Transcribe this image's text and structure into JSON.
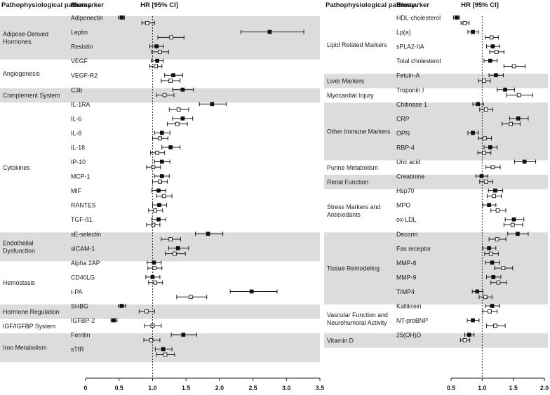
{
  "chart_data": {
    "type": "forest",
    "headers": {
      "pathway": "Pathophysiological pathway",
      "biomarker": "Biomarker",
      "hr": "HR [95% CI]"
    },
    "panels": [
      {
        "name": "left",
        "xlim": [
          0,
          3.5
        ],
        "ticks": [
          0,
          0.5,
          1.0,
          1.5,
          2.0,
          2.5,
          3.0,
          3.5
        ],
        "tick_labels": [
          "0",
          "0.5",
          "1.0",
          "1.5",
          "2.0",
          "2.5",
          "3.0",
          "3.5"
        ],
        "ref_line": 1.0,
        "groups": [
          {
            "pathway": "Adipose-Derived Hormones",
            "shaded": true,
            "biomarkers": [
              {
                "name": "Adiponectin",
                "filled": [
                  0.54,
                  0.49,
                  0.58
                ],
                "open": [
                  0.92,
                  0.84,
                  1.03
                ]
              },
              {
                "name": "Leptin",
                "filled": [
                  2.75,
                  2.32,
                  3.26
                ],
                "open": [
                  1.28,
                  1.08,
                  1.47
                ]
              },
              {
                "name": "Resistin",
                "filled": [
                  1.06,
                  0.96,
                  1.16
                ],
                "open": [
                  1.11,
                  0.99,
                  1.24
                ]
              }
            ]
          },
          {
            "pathway": "Angiogenesis",
            "shaded": false,
            "biomarkers": [
              {
                "name": "VEGF",
                "filled": [
                  1.07,
                  0.98,
                  1.16
                ],
                "open": [
                  1.05,
                  0.96,
                  1.14
                ]
              },
              {
                "name": "VEGF-R2",
                "filled": [
                  1.31,
                  1.18,
                  1.45
                ],
                "open": [
                  1.27,
                  1.13,
                  1.41
                ]
              }
            ]
          },
          {
            "pathway": "Complement System",
            "shaded": true,
            "biomarkers": [
              {
                "name": "C3b",
                "filled": [
                  1.45,
                  1.3,
                  1.61
                ],
                "open": [
                  1.18,
                  1.06,
                  1.32
                ]
              }
            ]
          },
          {
            "pathway": "Cytokines",
            "shaded": false,
            "biomarkers": [
              {
                "name": "IL-1RA",
                "filled": [
                  1.89,
                  1.7,
                  2.1
                ],
                "open": [
                  1.39,
                  1.25,
                  1.54
                ]
              },
              {
                "name": "IL-6",
                "filled": [
                  1.45,
                  1.3,
                  1.6
                ],
                "open": [
                  1.37,
                  1.22,
                  1.52
                ]
              },
              {
                "name": "IL-8",
                "filled": [
                  1.14,
                  1.03,
                  1.26
                ],
                "open": [
                  1.11,
                  1.0,
                  1.23
                ]
              },
              {
                "name": "IL-18",
                "filled": [
                  1.27,
                  1.14,
                  1.41
                ],
                "open": [
                  1.07,
                  0.97,
                  1.18
                ]
              },
              {
                "name": "IP-10",
                "filled": [
                  1.14,
                  1.03,
                  1.26
                ],
                "open": [
                  1.01,
                  0.91,
                  1.12
                ]
              },
              {
                "name": "MCP-1",
                "filled": [
                  1.14,
                  1.03,
                  1.25
                ],
                "open": [
                  1.11,
                  1.0,
                  1.22
                ]
              },
              {
                "name": "MIF",
                "filled": [
                  1.09,
                  0.99,
                  1.2
                ],
                "open": [
                  1.17,
                  1.06,
                  1.29
                ]
              },
              {
                "name": "RANTES",
                "filled": [
                  1.1,
                  1.0,
                  1.21
                ],
                "open": [
                  1.04,
                  0.94,
                  1.15
                ]
              },
              {
                "name": "TGF-ß1",
                "filled": [
                  1.09,
                  0.99,
                  1.2
                ],
                "open": [
                  1.01,
                  0.91,
                  1.11
                ]
              }
            ]
          },
          {
            "pathway": "Endothelial Dysfunction",
            "shaded": true,
            "biomarkers": [
              {
                "name": "sE-selectin",
                "filled": [
                  1.83,
                  1.64,
                  2.05
                ],
                "open": [
                  1.27,
                  1.13,
                  1.42
                ]
              },
              {
                "name": "sICAM-1",
                "filled": [
                  1.38,
                  1.24,
                  1.54
                ],
                "open": [
                  1.33,
                  1.19,
                  1.49
                ]
              }
            ]
          },
          {
            "pathway": "Hemostasis",
            "shaded": false,
            "biomarkers": [
              {
                "name": "Alpha 2AP",
                "filled": [
                  1.02,
                  0.92,
                  1.13
                ],
                "open": [
                  1.03,
                  0.93,
                  1.14
                ]
              },
              {
                "name": "CD40LG",
                "filled": [
                  1.0,
                  0.9,
                  1.11
                ],
                "open": [
                  1.04,
                  0.94,
                  1.15
                ]
              },
              {
                "name": "t-PA",
                "filled": [
                  2.48,
                  2.16,
                  2.86
                ],
                "open": [
                  1.57,
                  1.36,
                  1.81
                ]
              }
            ]
          },
          {
            "pathway": "Hormone Regulation",
            "shaded": true,
            "biomarkers": [
              {
                "name": "SHBG",
                "filled": [
                  0.54,
                  0.49,
                  0.6
                ],
                "open": [
                  0.91,
                  0.8,
                  1.03
                ]
              }
            ]
          },
          {
            "pathway": "IGF/IGFBP System",
            "shaded": false,
            "biomarkers": [
              {
                "name": "IGFBP-2",
                "filled": [
                  0.42,
                  0.38,
                  0.47
                ],
                "open": [
                  1.0,
                  0.88,
                  1.13
                ]
              }
            ]
          },
          {
            "pathway": "Iron Metabolism",
            "shaded": true,
            "biomarkers": [
              {
                "name": "Ferritin",
                "filled": [
                  1.46,
                  1.28,
                  1.66
                ],
                "open": [
                  0.98,
                  0.87,
                  1.11
                ]
              },
              {
                "name": "sTfR",
                "filled": [
                  1.16,
                  1.04,
                  1.29
                ],
                "open": [
                  1.19,
                  1.06,
                  1.33
                ]
              }
            ]
          }
        ]
      },
      {
        "name": "right",
        "xlim": [
          0.5,
          2.0
        ],
        "ticks": [
          0.5,
          1.0,
          1.5,
          2.0
        ],
        "tick_labels": [
          "0.5",
          "1.0",
          "1.5",
          "2.0"
        ],
        "ref_line": 1.0,
        "groups": [
          {
            "pathway": "Lipid Related Markers",
            "shaded": false,
            "biomarkers": [
              {
                "name": "HDL-cholesterol",
                "filled": [
                  0.59,
                  0.54,
                  0.64
                ],
                "open": [
                  0.72,
                  0.66,
                  0.79
                ]
              },
              {
                "name": "Lp(a)",
                "filled": [
                  0.85,
                  0.77,
                  0.94
                ],
                "open": [
                  1.15,
                  1.05,
                  1.26
                ]
              },
              {
                "name": "sPLA2-IIA",
                "filled": [
                  1.17,
                  1.07,
                  1.28
                ],
                "open": [
                  1.23,
                  1.12,
                  1.35
                ]
              },
              {
                "name": "Total cholesterol",
                "filled": [
                  1.13,
                  1.03,
                  1.24
                ],
                "open": [
                  1.51,
                  1.35,
                  1.69
                ]
              }
            ]
          },
          {
            "pathway": "Liver Markers",
            "shaded": true,
            "biomarkers": [
              {
                "name": "Fetuin-A",
                "filled": [
                  1.22,
                  1.11,
                  1.34
                ],
                "open": [
                  1.03,
                  0.94,
                  1.13
                ]
              }
            ]
          },
          {
            "pathway": "Myocardial Injury",
            "shaded": false,
            "biomarkers": [
              {
                "name": "Troponin I",
                "filled": [
                  1.37,
                  1.24,
                  1.52
                ],
                "open": [
                  1.59,
                  1.39,
                  1.81
                ]
              }
            ]
          },
          {
            "pathway": "Other Immune Markers",
            "shaded": true,
            "biomarkers": [
              {
                "name": "Chitinase 1",
                "filled": [
                  0.93,
                  0.85,
                  1.02
                ],
                "open": [
                  1.06,
                  0.96,
                  1.17
                ]
              },
              {
                "name": "CRP",
                "filled": [
                  1.58,
                  1.44,
                  1.74
                ],
                "open": [
                  1.46,
                  1.32,
                  1.61
                ]
              },
              {
                "name": "OPN",
                "filled": [
                  0.85,
                  0.77,
                  0.94
                ],
                "open": [
                  1.04,
                  0.94,
                  1.15
                ]
              },
              {
                "name": "RBP-4",
                "filled": [
                  1.13,
                  1.03,
                  1.24
                ],
                "open": [
                  1.03,
                  0.93,
                  1.14
                ]
              }
            ]
          },
          {
            "pathway": "Purine Metabolism",
            "shaded": false,
            "biomarkers": [
              {
                "name": "Uric acid",
                "filled": [
                  1.68,
                  1.52,
                  1.86
                ],
                "open": [
                  1.17,
                  1.06,
                  1.29
                ]
              }
            ]
          },
          {
            "pathway": "Renal Function",
            "shaded": true,
            "biomarkers": [
              {
                "name": "Creatinine",
                "filled": [
                  0.99,
                  0.9,
                  1.09
                ],
                "open": [
                  1.06,
                  0.96,
                  1.17
                ]
              }
            ]
          },
          {
            "pathway": "Stress Markers and Antioxidants",
            "shaded": false,
            "biomarkers": [
              {
                "name": "Hsp70",
                "filled": [
                  1.21,
                  1.1,
                  1.33
                ],
                "open": [
                  1.19,
                  1.08,
                  1.31
                ]
              },
              {
                "name": "MPO",
                "filled": [
                  1.11,
                  1.01,
                  1.22
                ],
                "open": [
                  1.25,
                  1.14,
                  1.38
                ]
              },
              {
                "name": "ox-LDL",
                "filled": [
                  1.51,
                  1.37,
                  1.67
                ],
                "open": [
                  1.49,
                  1.35,
                  1.65
                ]
              }
            ]
          },
          {
            "pathway": "Tissue Remodeling",
            "shaded": true,
            "biomarkers": [
              {
                "name": "Decorin",
                "filled": [
                  1.57,
                  1.41,
                  1.74
                ],
                "open": [
                  1.24,
                  1.11,
                  1.38
                ]
              },
              {
                "name": "Fas receptor",
                "filled": [
                  1.11,
                  1.01,
                  1.22
                ],
                "open": [
                  1.14,
                  1.04,
                  1.26
                ]
              },
              {
                "name": "MMP-8",
                "filled": [
                  1.16,
                  1.05,
                  1.28
                ],
                "open": [
                  1.34,
                  1.2,
                  1.49
                ]
              },
              {
                "name": "MMP-9",
                "filled": [
                  1.18,
                  1.07,
                  1.3
                ],
                "open": [
                  1.26,
                  1.14,
                  1.39
                ]
              },
              {
                "name": "TIMP4",
                "filled": [
                  0.92,
                  0.84,
                  1.01
                ],
                "open": [
                  1.05,
                  0.95,
                  1.16
                ]
              }
            ]
          },
          {
            "pathway": "Vascular Function and Neurohumoral Activity",
            "shaded": false,
            "biomarkers": [
              {
                "name": "Kallikrein",
                "filled": [
                  1.16,
                  1.05,
                  1.28
                ],
                "open": [
                  1.12,
                  1.01,
                  1.24
                ]
              },
              {
                "name": "NT-proBNP",
                "filled": [
                  0.85,
                  0.76,
                  0.95
                ],
                "open": [
                  1.21,
                  1.07,
                  1.37
                ]
              }
            ]
          },
          {
            "pathway": "Vitamin D",
            "shaded": true,
            "biomarkers": [
              {
                "name": "25(OH)D",
                "filled": [
                  0.79,
                  0.72,
                  0.87
                ],
                "open": [
                  0.72,
                  0.65,
                  0.8
                ]
              }
            ]
          }
        ]
      }
    ]
  }
}
